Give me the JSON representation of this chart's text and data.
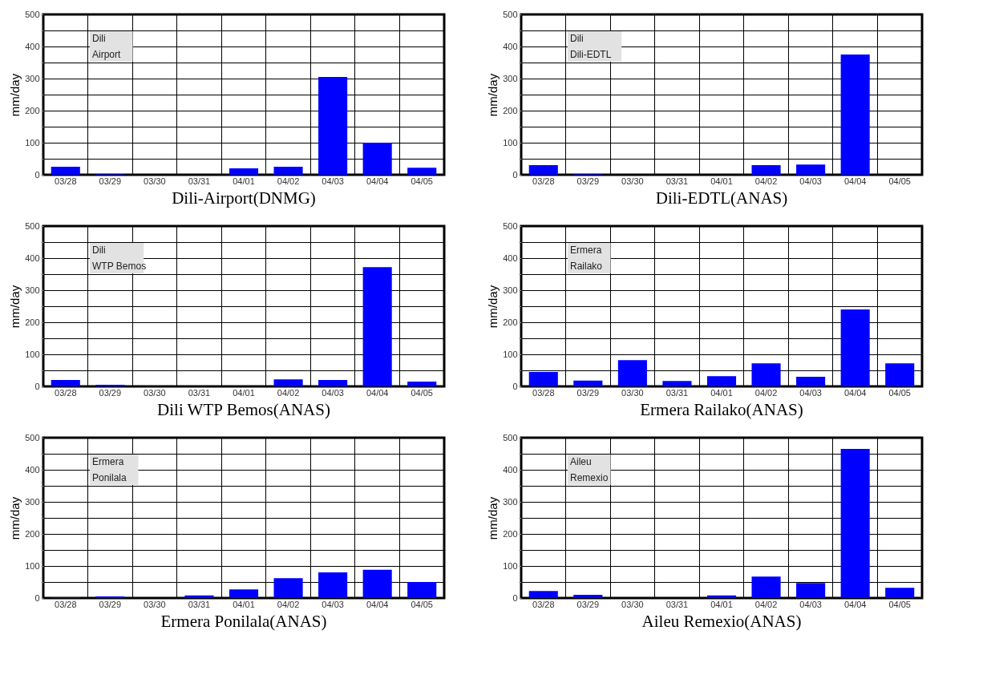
{
  "chart_data": [
    {
      "type": "bar",
      "title": "Dili-Airport(DNMG)",
      "annotations": [
        "Dili\nAirport"
      ],
      "ylabel": "mm/day",
      "categories": [
        "03/28",
        "03/29",
        "03/30",
        "03/31",
        "04/01",
        "04/02",
        "04/03",
        "04/04",
        "04/05"
      ],
      "values": [
        25,
        2,
        0,
        0,
        20,
        25,
        305,
        100,
        22
      ],
      "color": "#0000ff",
      "ylim": [
        0,
        500
      ],
      "yticks": [
        0,
        {
          "value": 50,
          "label": null
        },
        100,
        {
          "value": 150,
          "label": null
        },
        200,
        {
          "value": 250,
          "label": null
        },
        300,
        {
          "value": 350,
          "label": null
        },
        400,
        {
          "value": 450,
          "label": null
        },
        500
      ],
      "grid": true
    },
    {
      "type": "bar",
      "title": "Dili-EDTL(ANAS)",
      "annotations": [
        "Dili\nDili-EDTL"
      ],
      "ylabel": "mm/day",
      "categories": [
        "03/28",
        "03/29",
        "03/30",
        "03/31",
        "04/01",
        "04/02",
        "04/03",
        "04/04",
        "04/05"
      ],
      "values": [
        30,
        2,
        0,
        0,
        0,
        30,
        32,
        375,
        0
      ],
      "color": "#0000ff",
      "ylim": [
        0,
        500
      ],
      "yticks": [
        0,
        {
          "value": 50,
          "label": null
        },
        100,
        {
          "value": 150,
          "label": null
        },
        200,
        {
          "value": 250,
          "label": null
        },
        300,
        {
          "value": 350,
          "label": null
        },
        400,
        {
          "value": 450,
          "label": null
        },
        500
      ],
      "grid": true
    },
    {
      "type": "bar",
      "title": "Dili WTP Bemos(ANAS)",
      "annotations": [
        "Dili\nWTP Bemos"
      ],
      "ylabel": "mm/day",
      "categories": [
        "03/28",
        "03/29",
        "03/30",
        "03/31",
        "04/01",
        "04/02",
        "04/03",
        "04/04",
        "04/05"
      ],
      "values": [
        20,
        5,
        0,
        0,
        0,
        22,
        20,
        372,
        15
      ],
      "color": "#0000ff",
      "ylim": [
        0,
        500
      ],
      "yticks": [
        0,
        {
          "value": 50,
          "label": null
        },
        100,
        {
          "value": 150,
          "label": null
        },
        200,
        {
          "value": 250,
          "label": null
        },
        300,
        {
          "value": 350,
          "label": null
        },
        400,
        {
          "value": 450,
          "label": null
        },
        500
      ],
      "grid": true
    },
    {
      "type": "bar",
      "title": "Ermera Railako(ANAS)",
      "annotations": [
        "Ermera\nRailako"
      ],
      "ylabel": "mm/day",
      "categories": [
        "03/28",
        "03/29",
        "03/30",
        "03/31",
        "04/01",
        "04/02",
        "04/03",
        "04/04",
        "04/05"
      ],
      "values": [
        45,
        18,
        82,
        17,
        32,
        72,
        30,
        240,
        72
      ],
      "color": "#0000ff",
      "ylim": [
        0,
        500
      ],
      "yticks": [
        0,
        {
          "value": 50,
          "label": null
        },
        100,
        {
          "value": 150,
          "label": null
        },
        200,
        {
          "value": 250,
          "label": null
        },
        300,
        {
          "value": 350,
          "label": null
        },
        400,
        {
          "value": 450,
          "label": null
        },
        500
      ],
      "grid": true
    },
    {
      "type": "bar",
      "title": "Ermera Ponilala(ANAS)",
      "annotations": [
        "Ermera\nPonilala"
      ],
      "ylabel": "mm/day",
      "categories": [
        "03/28",
        "03/29",
        "03/30",
        "03/31",
        "04/01",
        "04/02",
        "04/03",
        "04/04",
        "04/05"
      ],
      "values": [
        2,
        5,
        0,
        8,
        27,
        62,
        80,
        88,
        50
      ],
      "color": "#0000ff",
      "ylim": [
        0,
        500
      ],
      "yticks": [
        0,
        {
          "value": 50,
          "label": null
        },
        100,
        {
          "value": 150,
          "label": null
        },
        200,
        {
          "value": 250,
          "label": null
        },
        300,
        {
          "value": 350,
          "label": null
        },
        400,
        {
          "value": 450,
          "label": null
        },
        500
      ],
      "grid": true
    },
    {
      "type": "bar",
      "title": "Aileu Remexio(ANAS)",
      "annotations": [
        "Aileu\nRemexio"
      ],
      "ylabel": "mm/day",
      "categories": [
        "03/28",
        "03/29",
        "03/30",
        "03/31",
        "04/01",
        "04/02",
        "04/03",
        "04/04",
        "04/05"
      ],
      "values": [
        22,
        10,
        0,
        0,
        8,
        67,
        47,
        465,
        32
      ],
      "color": "#0000ff",
      "ylim": [
        0,
        500
      ],
      "yticks": [
        0,
        {
          "value": 50,
          "label": null
        },
        100,
        {
          "value": 150,
          "label": null
        },
        200,
        {
          "value": 250,
          "label": null
        },
        300,
        {
          "value": 350,
          "label": null
        },
        400,
        {
          "value": 450,
          "label": null
        },
        500
      ],
      "grid": true
    }
  ]
}
